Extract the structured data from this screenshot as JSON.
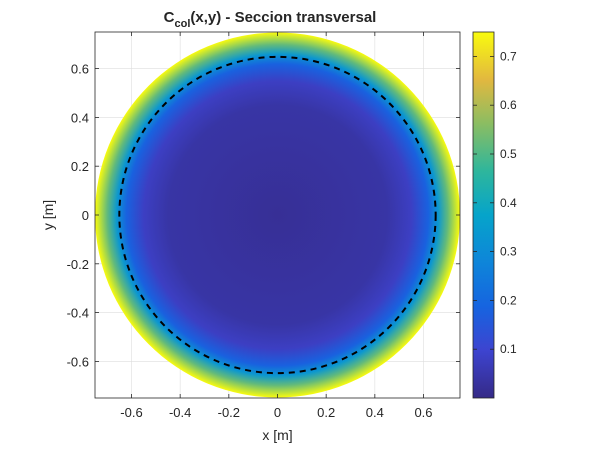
{
  "chart_data": {
    "type": "heatmap",
    "title": {
      "main": "C",
      "subscript": "col",
      "suffix": "(x,y) - Seccion transversal"
    },
    "xlabel": "x [m]",
    "ylabel": "y [m]",
    "xlim": [
      -0.75,
      0.75
    ],
    "ylim": [
      -0.75,
      0.75
    ],
    "xticks": [
      -0.6,
      -0.4,
      -0.2,
      0,
      0.2,
      0.4,
      0.6
    ],
    "yticks": [
      -0.6,
      -0.4,
      -0.2,
      0,
      0.2,
      0.4,
      0.6
    ],
    "xtick_labels": [
      "-0.6",
      "-0.4",
      "-0.2",
      "0",
      "0.2",
      "0.4",
      "0.6"
    ],
    "ytick_labels": [
      "-0.6",
      "-0.4",
      "-0.2",
      "0",
      "0.2",
      "0.4",
      "0.6"
    ],
    "grid": true,
    "colormap": "parula",
    "clim": [
      0,
      0.75
    ],
    "colorbar": {
      "ticks": [
        0.1,
        0.2,
        0.3,
        0.4,
        0.5,
        0.6,
        0.7
      ],
      "tick_labels": [
        "0.1",
        "0.2",
        "0.3",
        "0.4",
        "0.5",
        "0.6",
        "0.7"
      ],
      "location": "right"
    },
    "domain_radius": 0.75,
    "dashed_circle_radius": 0.65,
    "field_profile": [
      {
        "r": 0.0,
        "value": 0.02
      },
      {
        "r": 0.45,
        "value": 0.04
      },
      {
        "r": 0.55,
        "value": 0.08
      },
      {
        "r": 0.62,
        "value": 0.18
      },
      {
        "r": 0.66,
        "value": 0.33
      },
      {
        "r": 0.7,
        "value": 0.52
      },
      {
        "r": 0.75,
        "value": 0.75
      }
    ]
  }
}
